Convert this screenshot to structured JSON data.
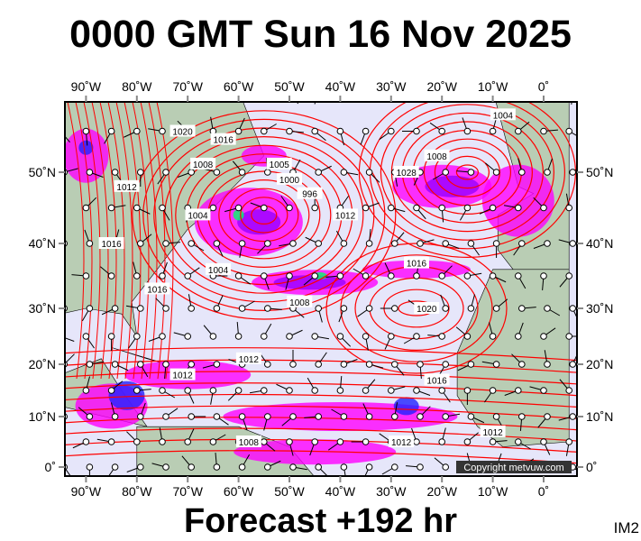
{
  "header": {
    "title": "0000 GMT Sun 16 Nov 2025"
  },
  "footer": {
    "forecast": "Forecast +192 hr",
    "image_code": "IM2"
  },
  "map": {
    "copyright": "Copyright metvuw.com",
    "lon_ticks": [
      {
        "lon": -90,
        "label": "90˚W"
      },
      {
        "lon": -80,
        "label": "80˚W"
      },
      {
        "lon": -70,
        "label": "70˚W"
      },
      {
        "lon": -60,
        "label": "60˚W"
      },
      {
        "lon": -50,
        "label": "50˚W"
      },
      {
        "lon": -40,
        "label": "40˚W"
      },
      {
        "lon": -30,
        "label": "30˚W"
      },
      {
        "lon": -20,
        "label": "20˚W"
      },
      {
        "lon": -10,
        "label": "10˚W"
      },
      {
        "lon": 0,
        "label": "0˚"
      }
    ],
    "lat_ticks": [
      {
        "lat": 50,
        "label": "50˚N"
      },
      {
        "lat": 40,
        "label": "40˚N"
      },
      {
        "lat": 30,
        "label": "30˚N"
      },
      {
        "lat": 20,
        "label": "20˚N"
      },
      {
        "lat": 10,
        "label": "10˚N"
      },
      {
        "lat": 0,
        "label": "0˚"
      }
    ],
    "isobar_labels": [
      {
        "text": "1020",
        "lon": -71,
        "lat": 55
      },
      {
        "text": "1016",
        "lon": -63,
        "lat": 54
      },
      {
        "text": "1008",
        "lon": -67,
        "lat": 51
      },
      {
        "text": "1012",
        "lon": -82,
        "lat": 48
      },
      {
        "text": "1005",
        "lon": -52,
        "lat": 51
      },
      {
        "text": "1000",
        "lon": -50,
        "lat": 49
      },
      {
        "text": "996",
        "lon": -46,
        "lat": 47
      },
      {
        "text": "1004",
        "lon": -68,
        "lat": 44
      },
      {
        "text": "1012",
        "lon": -39,
        "lat": 44
      },
      {
        "text": "1016",
        "lon": -85,
        "lat": 40
      },
      {
        "text": "1004",
        "lon": -64,
        "lat": 36
      },
      {
        "text": "1016",
        "lon": -76,
        "lat": 33
      },
      {
        "text": "1008",
        "lon": -48,
        "lat": 31
      },
      {
        "text": "1016",
        "lon": -25,
        "lat": 37
      },
      {
        "text": "1020",
        "lon": -23,
        "lat": 30
      },
      {
        "text": "1028",
        "lon": -27,
        "lat": 50
      },
      {
        "text": "1008",
        "lon": -21,
        "lat": 52
      },
      {
        "text": "1004",
        "lon": -8,
        "lat": 57
      },
      {
        "text": "1012",
        "lon": -58,
        "lat": 21
      },
      {
        "text": "1012",
        "lon": -71,
        "lat": 18
      },
      {
        "text": "1016",
        "lon": -21,
        "lat": 17
      },
      {
        "text": "1012",
        "lon": -10,
        "lat": 7
      },
      {
        "text": "1012",
        "lon": -28,
        "lat": 5
      },
      {
        "text": "1008",
        "lon": -58,
        "lat": 5
      }
    ]
  },
  "colors": {
    "ocean": "#e6e6fa",
    "land": "#b9cdb4",
    "isobar": "#ff0000",
    "rain_light": "#ff00ff",
    "rain_mid": "#9900ff",
    "rain_heavy": "#2222ff",
    "rain_extreme": "#00ff66"
  }
}
